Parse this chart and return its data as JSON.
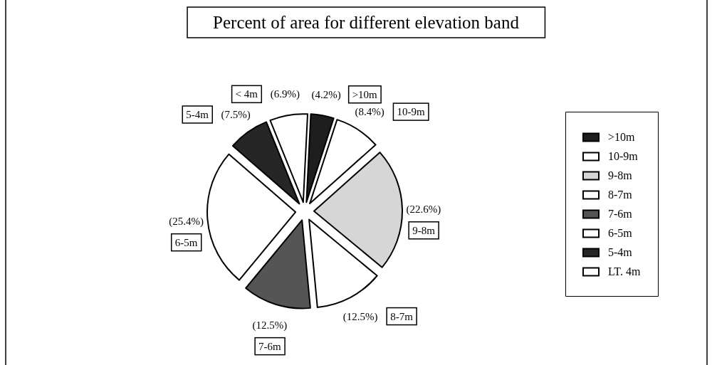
{
  "chart_data": {
    "type": "pie",
    "title": "Percent of area for different elevation band",
    "categories": [
      ">10m",
      "10-9m",
      "9-8m",
      "8-7m",
      "7-6m",
      "6-5m",
      "5-4m",
      "LT. 4m"
    ],
    "values": [
      4.2,
      8.4,
      22.6,
      12.5,
      12.5,
      25.4,
      7.5,
      6.9
    ],
    "colors": [
      "#1e1e1e",
      "#ffffff",
      "#d6d6d6",
      "#ffffff",
      "#555555",
      "#ffffff",
      "#262626",
      "#ffffff"
    ],
    "value_labels": [
      "(4.2%)",
      "(8.4%)",
      "(22.6%)",
      "(12.5%)",
      "(12.5%)",
      "(25.4%)",
      "(7.5%)",
      "(6.9%)"
    ],
    "annotations": [
      ">10m",
      "10-9m",
      "9-8m",
      "8-7m",
      "7-6m",
      "6-5m",
      "5-4m",
      "< 4m"
    ],
    "legend": "right"
  }
}
